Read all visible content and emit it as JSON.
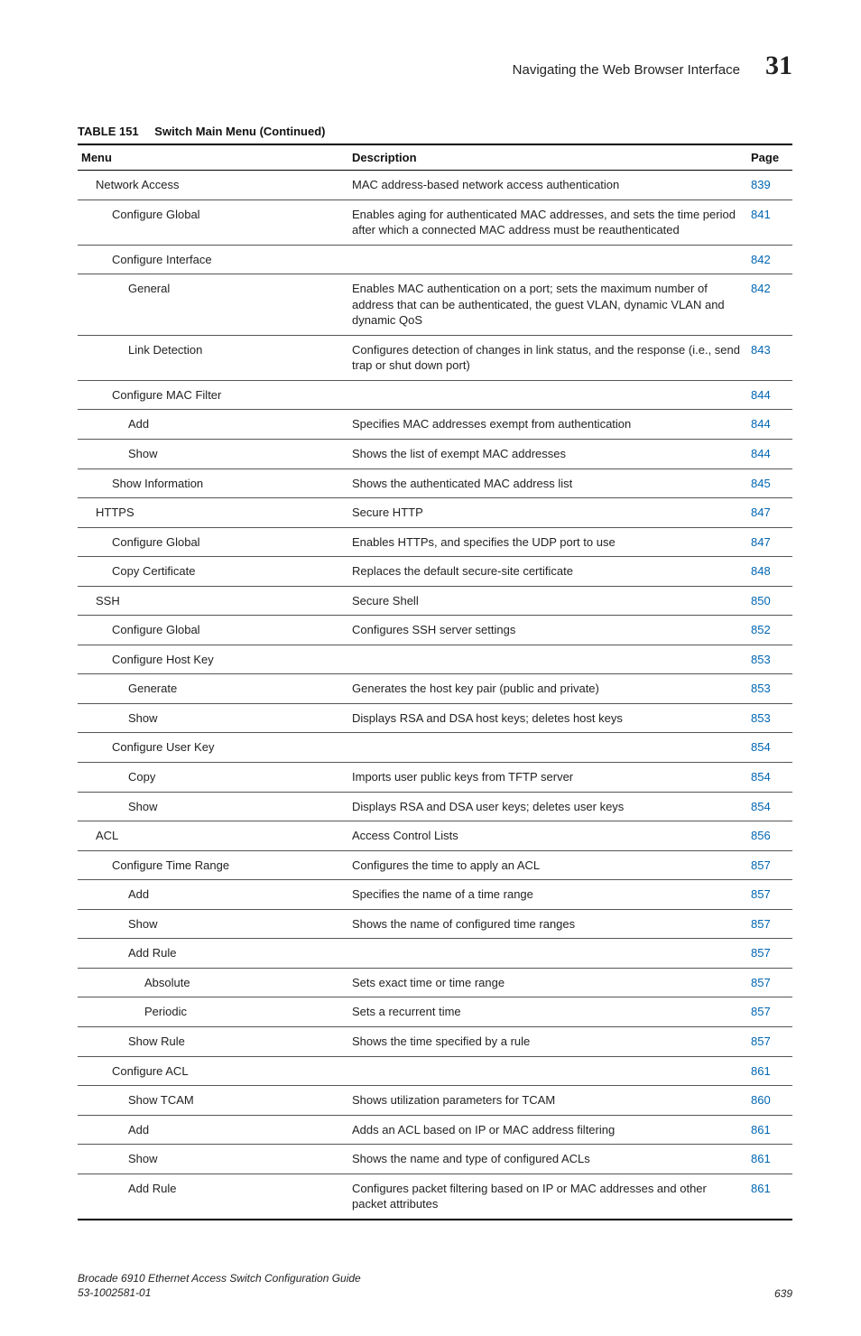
{
  "header": {
    "section_title": "Navigating the Web Browser Interface",
    "chapter_number": "31"
  },
  "table": {
    "caption_label": "TABLE 151",
    "caption_title": "Switch Main Menu (Continued)",
    "columns": {
      "menu": "Menu",
      "description": "Description",
      "page": "Page"
    },
    "page_link_color": "#0066b3",
    "text_color": "#222222",
    "border_color": "#000000",
    "row_border_color": "#555555",
    "rows": [
      {
        "indent": 1,
        "menu": "Network Access",
        "description": "MAC address-based network access authentication",
        "page": "839"
      },
      {
        "indent": 2,
        "menu": "Configure Global",
        "description": "Enables aging for authenticated MAC addresses, and sets the time period after which a connected MAC address must be reauthenticated",
        "page": "841"
      },
      {
        "indent": 2,
        "menu": "Configure Interface",
        "description": "",
        "page": "842"
      },
      {
        "indent": 3,
        "menu": "General",
        "description": "Enables MAC authentication on a port; sets the maximum number of address that can be authenticated, the guest VLAN, dynamic VLAN and dynamic QoS",
        "page": "842"
      },
      {
        "indent": 3,
        "menu": "Link Detection",
        "description": "Configures detection of changes in link status, and the response (i.e., send trap or shut down port)",
        "page": "843"
      },
      {
        "indent": 2,
        "menu": "Configure MAC Filter",
        "description": "",
        "page": "844"
      },
      {
        "indent": 3,
        "menu": "Add",
        "description": "Specifies MAC addresses exempt from authentication",
        "page": "844"
      },
      {
        "indent": 3,
        "menu": "Show",
        "description": "Shows the list of exempt MAC addresses",
        "page": "844"
      },
      {
        "indent": 2,
        "menu": "Show Information",
        "description": "Shows the authenticated MAC address list",
        "page": "845"
      },
      {
        "indent": 1,
        "menu": "HTTPS",
        "description": "Secure HTTP",
        "page": "847"
      },
      {
        "indent": 2,
        "menu": "Configure Global",
        "description": "Enables HTTPs, and specifies the UDP port to use",
        "page": "847"
      },
      {
        "indent": 2,
        "menu": "Copy Certificate",
        "description": "Replaces the default secure-site certificate",
        "page": "848"
      },
      {
        "indent": 1,
        "menu": "SSH",
        "description": "Secure Shell",
        "page": "850"
      },
      {
        "indent": 2,
        "menu": "Configure Global",
        "description": "Configures SSH server settings",
        "page": "852"
      },
      {
        "indent": 2,
        "menu": "Configure Host Key",
        "description": "",
        "page": "853"
      },
      {
        "indent": 3,
        "menu": "Generate",
        "description": "Generates the host key pair (public and private)",
        "page": "853"
      },
      {
        "indent": 3,
        "menu": "Show",
        "description": "Displays RSA and DSA host keys; deletes host keys",
        "page": "853"
      },
      {
        "indent": 2,
        "menu": "Configure User Key",
        "description": "",
        "page": "854"
      },
      {
        "indent": 3,
        "menu": "Copy",
        "description": "Imports user public keys from TFTP server",
        "page": "854"
      },
      {
        "indent": 3,
        "menu": "Show",
        "description": "Displays RSA and DSA user keys; deletes user keys",
        "page": "854"
      },
      {
        "indent": 1,
        "menu": "ACL",
        "description": "Access Control Lists",
        "page": "856"
      },
      {
        "indent": 2,
        "menu": "Configure Time Range",
        "description": "Configures the time to apply an ACL",
        "page": "857"
      },
      {
        "indent": 3,
        "menu": "Add",
        "description": "Specifies the name of a time range",
        "page": "857"
      },
      {
        "indent": 3,
        "menu": "Show",
        "description": "Shows the name of configured time ranges",
        "page": "857"
      },
      {
        "indent": 3,
        "menu": "Add Rule",
        "description": "",
        "page": "857"
      },
      {
        "indent": 4,
        "menu": "Absolute",
        "description": "Sets exact time or time range",
        "page": "857"
      },
      {
        "indent": 4,
        "menu": "Periodic",
        "description": "Sets a recurrent time",
        "page": "857"
      },
      {
        "indent": 3,
        "menu": "Show Rule",
        "description": "Shows the time specified by a rule",
        "page": "857"
      },
      {
        "indent": 2,
        "menu": "Configure ACL",
        "description": "",
        "page": "861"
      },
      {
        "indent": 3,
        "menu": "Show TCAM",
        "description": "Shows utilization parameters for TCAM",
        "page": "860"
      },
      {
        "indent": 3,
        "menu": "Add",
        "description": "Adds an ACL based on IP or MAC address filtering",
        "page": "861"
      },
      {
        "indent": 3,
        "menu": "Show",
        "description": "Shows the name and type of configured ACLs",
        "page": "861"
      },
      {
        "indent": 3,
        "menu": "Add Rule",
        "description": "Configures packet filtering based on IP or MAC addresses and other packet attributes",
        "page": "861"
      }
    ]
  },
  "footer": {
    "doc_title": "Brocade 6910 Ethernet Access Switch Configuration Guide",
    "doc_number": "53-1002581-01",
    "page_number": "639"
  }
}
